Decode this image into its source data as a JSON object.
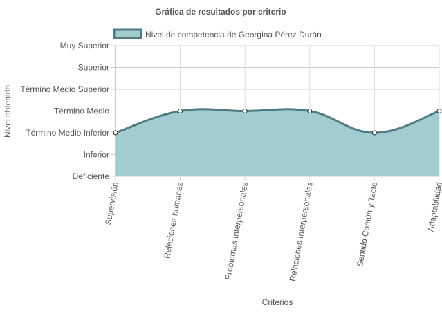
{
  "chart_data": {
    "type": "area",
    "title": "Gráfica de resultados por criterio",
    "xlabel": "Criterios",
    "ylabel": "Nivel obtenido",
    "categories": [
      "Supervisión",
      "Relaciones humanas",
      "Problemas Interpersonales",
      "Relaciones Interpersonales",
      "Sentido Común y Tacto",
      "Adaptabilidad"
    ],
    "y_levels": [
      "Deficiente",
      "Inferior",
      "Término Medio Inferior",
      "Término Medio",
      "Término Medio Superior",
      "Superior",
      "Muy Superior"
    ],
    "ylim": [
      0,
      6
    ],
    "series": [
      {
        "name": "Nivel de competencia de Georgina Pérez Durán",
        "values": [
          2,
          3,
          3,
          3,
          2,
          3
        ]
      }
    ],
    "legend_position": "top",
    "grid": true,
    "colors": {
      "fill": "#a1cdd1",
      "line": "#4d7b80",
      "point_fill": "#ffffff",
      "point_stroke": "#2c2c2c",
      "grid": "#dddddd",
      "axis": "#666666",
      "text": "#555555"
    }
  }
}
